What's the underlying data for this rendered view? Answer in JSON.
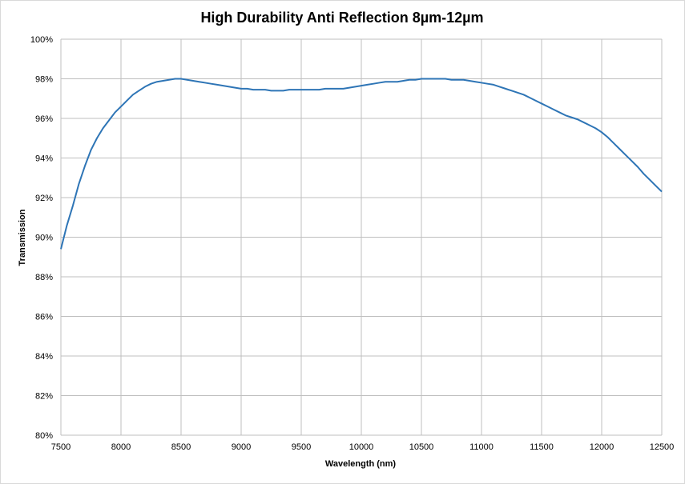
{
  "chart_data": {
    "type": "line",
    "title": "High Durability Anti Reflection 8µm-12µm",
    "xlabel": "Wavelength (nm)",
    "ylabel": "Transmission",
    "xlim": [
      7500,
      12500
    ],
    "ylim": [
      80,
      100
    ],
    "x_ticks": [
      "7500",
      "8000",
      "8500",
      "9000",
      "9500",
      "10000",
      "10500",
      "11000",
      "11500",
      "12000",
      "12500"
    ],
    "y_ticks": [
      "80%",
      "82%",
      "84%",
      "86%",
      "88%",
      "90%",
      "92%",
      "94%",
      "96%",
      "98%",
      "100%"
    ],
    "grid": true,
    "legend": "none",
    "series_color": "#2e75b6",
    "series": [
      {
        "x": [
          7500,
          7550,
          7600,
          7650,
          7700,
          7750,
          7800,
          7850,
          7900,
          7950,
          8000,
          8050,
          8100,
          8150,
          8200,
          8250,
          8300,
          8350,
          8400,
          8450,
          8500,
          8550,
          8600,
          8650,
          8700,
          8750,
          8800,
          8850,
          8900,
          8950,
          9000,
          9050,
          9100,
          9150,
          9200,
          9250,
          9300,
          9350,
          9400,
          9450,
          9500,
          9550,
          9600,
          9650,
          9700,
          9750,
          9800,
          9850,
          9900,
          9950,
          10000,
          10050,
          10100,
          10150,
          10200,
          10250,
          10300,
          10350,
          10400,
          10450,
          10500,
          10550,
          10600,
          10650,
          10700,
          10750,
          10800,
          10850,
          10900,
          10950,
          11000,
          11050,
          11100,
          11150,
          11200,
          11250,
          11300,
          11350,
          11400,
          11450,
          11500,
          11550,
          11600,
          11650,
          11700,
          11750,
          11800,
          11850,
          11900,
          11950,
          12000,
          12050,
          12100,
          12150,
          12200,
          12250,
          12300,
          12350,
          12400,
          12450,
          12500
        ],
        "values": [
          89.4,
          90.6,
          91.6,
          92.7,
          93.6,
          94.4,
          95.0,
          95.5,
          95.9,
          96.3,
          96.6,
          96.9,
          97.2,
          97.4,
          97.6,
          97.75,
          97.85,
          97.9,
          97.95,
          98.0,
          98.0,
          97.95,
          97.9,
          97.85,
          97.8,
          97.75,
          97.7,
          97.65,
          97.6,
          97.55,
          97.5,
          97.5,
          97.45,
          97.45,
          97.45,
          97.4,
          97.4,
          97.4,
          97.45,
          97.45,
          97.45,
          97.45,
          97.45,
          97.45,
          97.5,
          97.5,
          97.5,
          97.5,
          97.55,
          97.6,
          97.65,
          97.7,
          97.75,
          97.8,
          97.85,
          97.85,
          97.85,
          97.9,
          97.95,
          97.95,
          98.0,
          98.0,
          98.0,
          98.0,
          98.0,
          97.95,
          97.95,
          97.95,
          97.9,
          97.85,
          97.8,
          97.75,
          97.7,
          97.6,
          97.5,
          97.4,
          97.3,
          97.2,
          97.05,
          96.9,
          96.75,
          96.6,
          96.45,
          96.3,
          96.15,
          96.05,
          95.95,
          95.8,
          95.65,
          95.5,
          95.3,
          95.05,
          94.75,
          94.45,
          94.15,
          93.85,
          93.55,
          93.2,
          92.9,
          92.6,
          92.3
        ]
      }
    ]
  }
}
